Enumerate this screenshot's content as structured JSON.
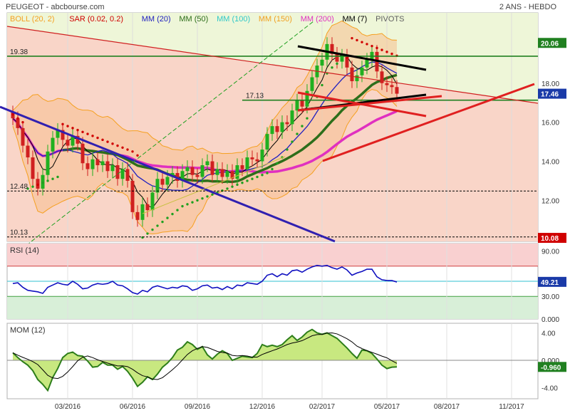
{
  "header": {
    "title": "PEUGEOT - abcbourse.com",
    "period": "2 ANS - HEBDO"
  },
  "colors": {
    "boll": "#f5a020",
    "sar": "#d00000",
    "mm20": "#2020c0",
    "mm50": "#2d6e1a",
    "mm100": "#30c8c8",
    "mm150": "#f0a020",
    "mm200": "#e030c0",
    "mm7": "#000000",
    "pivots": "#606060",
    "up": "#20b020",
    "down": "#d02020",
    "rsi": "#1010c0",
    "mom": "#2d7e1a",
    "momfill": "#c8e880"
  },
  "chart_data": [
    {
      "type": "candlestick",
      "legend": [
        {
          "label": "BOLL (20, 2)",
          "color": "#f5a020"
        },
        {
          "label": "SAR (0.02, 0.2)",
          "color": "#d00000"
        },
        {
          "label": "MM (20)",
          "color": "#2020c0"
        },
        {
          "label": "MM (50)",
          "color": "#2d6e1a"
        },
        {
          "label": "MM (100)",
          "color": "#30c8c8"
        },
        {
          "label": "MM (150)",
          "color": "#f0a020"
        },
        {
          "label": "MM (200)",
          "color": "#e030c0"
        },
        {
          "label": "MM (7)",
          "color": "#000000"
        },
        {
          "label": "PIVOTS",
          "color": "#606060"
        }
      ],
      "ylim": [
        9.9,
        21.6
      ],
      "yticks": [
        "18.00",
        "16.00",
        "14.00",
        "12.00"
      ],
      "levels": [
        {
          "value": 19.38,
          "label": "19.38",
          "color": "#208020"
        },
        {
          "value": 17.13,
          "label": "17.13",
          "color": "#208020"
        },
        {
          "value": 12.48,
          "label": "12.48",
          "color": "#000000"
        },
        {
          "value": 10.13,
          "label": "10.13",
          "color": "#000000"
        }
      ],
      "last_badges": [
        {
          "value": 20.06,
          "label": "20.06",
          "color": "#208020"
        },
        {
          "value": 17.46,
          "label": "17.46",
          "color": "#1a3aa8"
        },
        {
          "value": 10.08,
          "label": "10.08",
          "color": "#d00000"
        }
      ],
      "x_labels": [
        {
          "index": 11,
          "label": "03/2016"
        },
        {
          "index": 24,
          "label": "06/2016"
        },
        {
          "index": 37,
          "label": "09/2016"
        },
        {
          "index": 50,
          "label": "12/2016"
        },
        {
          "index": 62,
          "label": "02/2017"
        },
        {
          "index": 75,
          "label": "05/2017"
        },
        {
          "index": 87,
          "label": "08/2017"
        },
        {
          "index": 100,
          "label": "11/2017"
        }
      ],
      "close": [
        16.2,
        15.7,
        14.8,
        14.2,
        13.1,
        12.6,
        13.3,
        14.5,
        15.2,
        15.6,
        15.1,
        14.8,
        15.3,
        14.9,
        13.9,
        13.6,
        14.1,
        13.8,
        14.0,
        13.5,
        13.8,
        13.1,
        13.6,
        13.0,
        11.4,
        11.0,
        11.8,
        11.5,
        12.4,
        13.1,
        12.8,
        13.2,
        13.4,
        13.0,
        13.5,
        13.7,
        13.3,
        13.2,
        13.8,
        14.0,
        13.3,
        13.6,
        13.2,
        13.5,
        13.1,
        13.8,
        13.6,
        14.2,
        14.1,
        14.0,
        14.6,
        15.4,
        15.8,
        15.5,
        16.0,
        15.9,
        16.6,
        17.1,
        16.8,
        17.6,
        18.3,
        18.9,
        19.2,
        20.0,
        19.5,
        19.1,
        19.4,
        18.8,
        18.1,
        18.4,
        18.8,
        19.2,
        19.6,
        18.6,
        18.0,
        17.9,
        17.8,
        17.46
      ],
      "sar": [
        16.4,
        16.2,
        16.0,
        12.6,
        12.7,
        12.8,
        12.9,
        13.0,
        13.1,
        13.2,
        15.9,
        15.8,
        15.7,
        15.6,
        15.5,
        15.4,
        15.3,
        15.2,
        15.1,
        15.0,
        14.9,
        14.8,
        14.7,
        14.6,
        14.5,
        14.3,
        10.1,
        10.3,
        10.5,
        10.7,
        10.9,
        11.1,
        11.3,
        11.5,
        11.7,
        11.8,
        11.9,
        12.0,
        12.1,
        12.2,
        12.3,
        12.4,
        12.5,
        12.6,
        12.7,
        12.8,
        12.9,
        13.0,
        13.1,
        13.2,
        13.3,
        13.4,
        13.6,
        13.9,
        14.2,
        14.6,
        15.0,
        15.4,
        15.8,
        16.2,
        16.7,
        17.3,
        17.9,
        18.5,
        18.8,
        19.0,
        19.2,
        19.3,
        20.3,
        20.2,
        20.1,
        20.0,
        19.9,
        19.8,
        19.7,
        19.6,
        19.5,
        19.4
      ],
      "rsi": {
        "label": "RSI (14)",
        "ylim": [
          0,
          100
        ],
        "yticks": [
          "90.00",
          "30.00",
          "0.000"
        ],
        "overbought": 70,
        "oversold": 30,
        "last": "49.21",
        "values": [
          47,
          48,
          42,
          38,
          37,
          36,
          34,
          42,
          45,
          48,
          46,
          45,
          50,
          46,
          40,
          41,
          45,
          47,
          46,
          47,
          50,
          45,
          44,
          40,
          35,
          33,
          38,
          36,
          42,
          44,
          42,
          40,
          42,
          41,
          44,
          43,
          38,
          40,
          44,
          45,
          41,
          42,
          39,
          43,
          40,
          45,
          44,
          48,
          47,
          46,
          50,
          58,
          60,
          56,
          60,
          58,
          64,
          65,
          62,
          66,
          69,
          71,
          70,
          71,
          68,
          66,
          69,
          65,
          58,
          61,
          63,
          66,
          66,
          56,
          52,
          51,
          51,
          49
        ]
      },
      "mom": {
        "label": "MOM (12)",
        "ylim": [
          -5.6,
          5.4
        ],
        "yticks": [
          "4.00",
          "0.000",
          "-4.00"
        ],
        "last": "-0.960",
        "values": [
          1.1,
          0.4,
          -0.2,
          -0.7,
          -1.5,
          -2.8,
          -3.5,
          -4.4,
          -2.5,
          -1.2,
          0.4,
          1.0,
          1.2,
          0.7,
          0.6,
          -0.1,
          -1.0,
          -0.9,
          -0.3,
          -0.7,
          -0.7,
          -1.3,
          -0.9,
          -1.6,
          -2.6,
          -3.8,
          -3.2,
          -2.4,
          -2.8,
          -2.0,
          -1.0,
          -0.4,
          0.4,
          1.5,
          1.9,
          2.7,
          2.3,
          1.6,
          2.0,
          0.8,
          0.2,
          0.9,
          1.4,
          1.0,
          0.0,
          0.3,
          0.6,
          0.5,
          0.4,
          1.0,
          2.3,
          2.0,
          2.2,
          2.0,
          2.3,
          3.0,
          3.6,
          2.9,
          3.4,
          4.1,
          4.5,
          4.0,
          3.8,
          4.0,
          3.6,
          3.2,
          2.5,
          1.8,
          1.0,
          0.3,
          1.5,
          1.4,
          1.0,
          0.2,
          -0.7,
          -1.2,
          -1.0,
          -0.96
        ]
      }
    }
  ]
}
